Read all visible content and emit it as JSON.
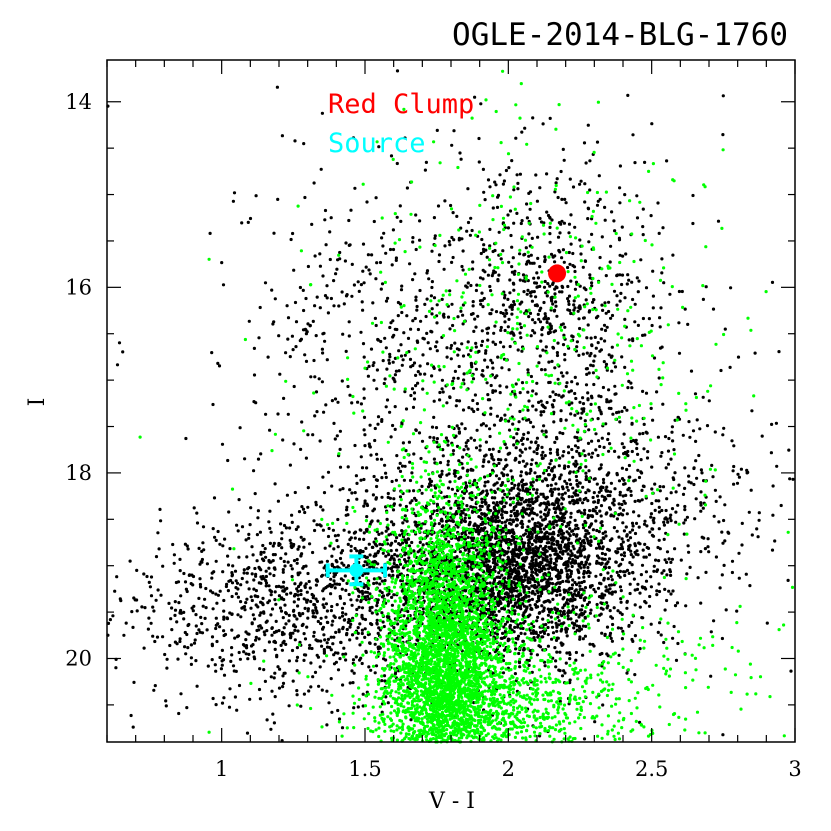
{
  "chart_data": {
    "type": "scatter",
    "title": "OGLE-2014-BLG-1760",
    "xlabel": "V - I",
    "ylabel": "I",
    "xlim": [
      0.6,
      3.0
    ],
    "ylim": [
      20.9,
      13.55
    ],
    "y_inverted": true,
    "x_ticks": [
      1,
      1.5,
      2,
      2.5,
      3
    ],
    "x_tick_labels": [
      "1",
      "1.5",
      "2",
      "2.5",
      "3"
    ],
    "y_ticks": [
      14,
      16,
      18,
      20
    ],
    "y_tick_labels": [
      "14",
      "16",
      "18",
      "20"
    ],
    "grid": false,
    "legend_position": "top-center",
    "colors": {
      "field_black": "#000000",
      "field_green": "#00ff00",
      "red_clump": "#ff0000",
      "source": "#00ffff"
    },
    "legend": [
      {
        "label": "Red Clump",
        "color": "#ff0000"
      },
      {
        "label": "Source",
        "color": "#00ffff"
      }
    ],
    "red_clump": {
      "x": 2.17,
      "y": 15.85
    },
    "source": {
      "x": 1.47,
      "y": 19.05,
      "x_err": 0.1,
      "y_err": 0.15
    },
    "field_stars": [
      {
        "name": "black",
        "color": "#000000",
        "components": [
          {
            "x_center": 2.05,
            "y_center": 19.0,
            "x_sigma": 0.2,
            "y_sigma": 0.55,
            "n": 2200
          },
          {
            "x_center": 2.2,
            "y_center": 18.3,
            "x_sigma": 0.35,
            "y_sigma": 0.6,
            "n": 900
          },
          {
            "x_center": 1.65,
            "y_center": 19.2,
            "x_sigma": 0.3,
            "y_sigma": 0.45,
            "n": 900
          },
          {
            "x_center": 1.2,
            "y_center": 19.5,
            "x_sigma": 0.3,
            "y_sigma": 0.5,
            "n": 700
          },
          {
            "x_center": 2.15,
            "y_center": 16.2,
            "x_sigma": 0.2,
            "y_sigma": 0.8,
            "n": 650
          },
          {
            "x_center": 1.6,
            "y_center": 16.5,
            "x_sigma": 0.25,
            "y_sigma": 0.8,
            "n": 350
          },
          {
            "x_center": 1.85,
            "y_center": 17.5,
            "x_sigma": 0.5,
            "y_sigma": 1.8,
            "n": 500
          }
        ]
      },
      {
        "name": "green",
        "color": "#00ff00",
        "components": [
          {
            "x_center": 1.78,
            "y_center": 20.0,
            "x_sigma": 0.1,
            "y_sigma": 0.8,
            "n": 3500
          },
          {
            "x_center": 1.95,
            "y_center": 20.5,
            "x_sigma": 0.22,
            "y_sigma": 0.35,
            "n": 900
          },
          {
            "x_center": 2.25,
            "y_center": 20.3,
            "x_sigma": 0.4,
            "y_sigma": 0.5,
            "n": 250
          },
          {
            "x_center": 2.1,
            "y_center": 16.8,
            "x_sigma": 0.3,
            "y_sigma": 1.2,
            "n": 350
          },
          {
            "x_center": 1.9,
            "y_center": 18.0,
            "x_sigma": 0.4,
            "y_sigma": 1.5,
            "n": 200
          }
        ]
      }
    ]
  }
}
